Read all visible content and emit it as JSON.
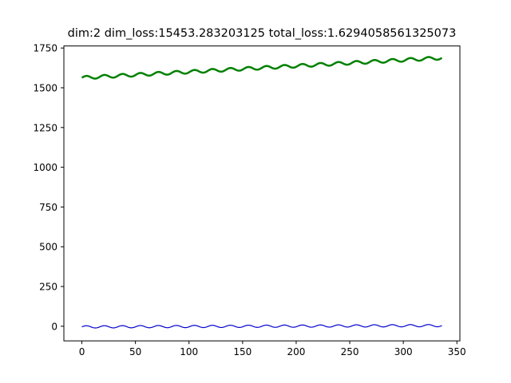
{
  "chart_data": {
    "type": "line",
    "title": "dim:2 dim_loss:15453.283203125 total_loss:1.6294058561325073",
    "xlabel": "",
    "ylabel": "",
    "xlim": [
      -16.8,
      352.8
    ],
    "ylim": [
      -92,
      1763
    ],
    "xticks": [
      0,
      50,
      100,
      150,
      200,
      250,
      300,
      350
    ],
    "yticks": [
      0,
      250,
      500,
      750,
      1000,
      1250,
      1500,
      1750
    ],
    "grid": false,
    "series": [
      {
        "color": "#008000",
        "linewidth": 2.5,
        "x_range": [
          0,
          336
        ],
        "baseline": [
          1563,
          1688
        ],
        "oscillation_amplitude": 10,
        "oscillation_period": 16.8
      },
      {
        "color": "#0000cc",
        "linewidth": 1.2,
        "x_range": [
          0,
          336
        ],
        "baseline": [
          -4,
          4
        ],
        "oscillation_amplitude": 7,
        "oscillation_period": 16.8
      }
    ]
  }
}
